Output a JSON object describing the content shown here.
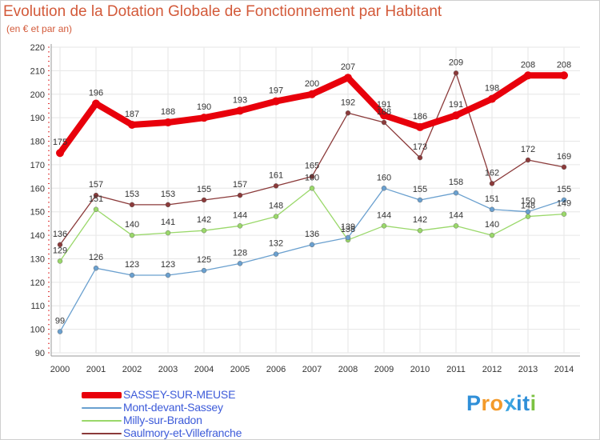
{
  "title": "Evolution de la Dotation Globale de Fonctionnement par Habitant",
  "subtitle": "(en € et par an)",
  "logo": {
    "text": "Proxiti",
    "letter_colors": [
      "#2f8fd8",
      "#f39a2a",
      "#f39a2a",
      "#3aa3e0",
      "#2f8fd8",
      "#2f8fd8",
      "#7cc242"
    ]
  },
  "chart_data": {
    "type": "line",
    "title": "Evolution de la Dotation Globale de Fonctionnement par Habitant",
    "ylabel": "(en € et par an)",
    "xlabel": "",
    "ylim": [
      90,
      220
    ],
    "y_ticks": [
      90,
      100,
      110,
      120,
      130,
      140,
      150,
      160,
      170,
      180,
      190,
      200,
      210,
      220
    ],
    "grid": true,
    "legend_position": "bottom-left",
    "categories": [
      "2000",
      "2001",
      "2002",
      "2003",
      "2004",
      "2005",
      "2006",
      "2007",
      "2008",
      "2009",
      "2010",
      "2011",
      "2012",
      "2013",
      "2014"
    ],
    "series": [
      {
        "name": "SASSEY-SUR-MEUSE",
        "color": "#e8000b",
        "values": [
          175,
          196,
          187,
          188,
          190,
          193,
          197,
          200,
          207,
          191,
          186,
          191,
          198,
          208,
          208
        ],
        "labels": [
          "175",
          "196",
          "187",
          "188",
          "190",
          "193",
          "197",
          "200",
          "207",
          "191",
          "186",
          "191",
          "198",
          "208",
          "208"
        ]
      },
      {
        "name": "Mont-devant-Sassey",
        "color": "#6aa0cf",
        "values": [
          99,
          126,
          123,
          123,
          125,
          128,
          132,
          136,
          139,
          160,
          155,
          158,
          151,
          150,
          155
        ],
        "labels": [
          "99",
          "126",
          "123",
          "123",
          "125",
          "128",
          "132",
          "136",
          "139",
          "160",
          "155",
          "158",
          "151",
          "150",
          "155"
        ]
      },
      {
        "name": "Milly-sur-Bradon",
        "color": "#9ad86a",
        "values": [
          129,
          151,
          140,
          141,
          142,
          144,
          148,
          160,
          138,
          144,
          142,
          144,
          140,
          148,
          149
        ],
        "labels": [
          "129",
          "151",
          "140",
          "141",
          "142",
          "144",
          "148",
          "160",
          "138",
          "144",
          "142",
          "144",
          "140",
          "148",
          "149"
        ]
      },
      {
        "name": "Saulmory-et-Villefranche",
        "color": "#8b3a3a",
        "values": [
          136,
          157,
          153,
          153,
          155,
          157,
          161,
          165,
          192,
          188,
          173,
          209,
          162,
          172,
          169
        ],
        "labels": [
          "136",
          "157",
          "153",
          "153",
          "155",
          "157",
          "161",
          "165",
          "192",
          "188",
          "173",
          "209",
          "162",
          "172",
          "169"
        ]
      }
    ]
  }
}
